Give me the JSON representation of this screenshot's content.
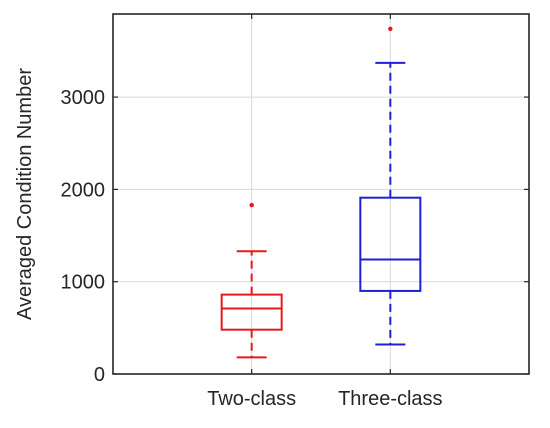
{
  "chart_data": {
    "type": "box",
    "categories": [
      "Two-class",
      "Three-class"
    ],
    "ylabel": "Averaged Condition Number",
    "xlabel": "",
    "title": "",
    "ylim": [
      0,
      3900
    ],
    "yticks": [
      0,
      1000,
      2000,
      3000
    ],
    "grid": true,
    "colors": {
      "Two-class": "#e41a1c",
      "Three-class": "#1f1fd6"
    },
    "series": [
      {
        "category": "Two-class",
        "whisker_low": 180,
        "q1": 480,
        "median": 710,
        "q3": 860,
        "whisker_high": 1330,
        "outliers": [
          1830
        ]
      },
      {
        "category": "Three-class",
        "whisker_low": 320,
        "q1": 900,
        "median": 1240,
        "q3": 1910,
        "whisker_high": 3370,
        "outliers": [
          3740
        ]
      }
    ]
  }
}
